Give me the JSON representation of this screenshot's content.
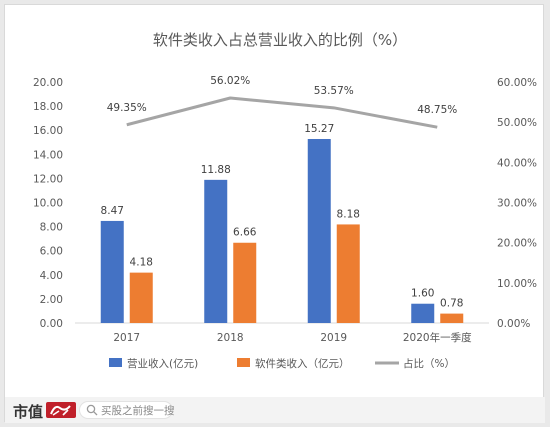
{
  "chart_data": {
    "type": "bar",
    "title": "软件类收入占总营业收入的比例（%）",
    "categories": [
      "2017",
      "2018",
      "2019",
      "2020年一季度"
    ],
    "series": [
      {
        "name": "营业收入(亿元)",
        "type": "bar",
        "axis": "left",
        "color": "#4472c4",
        "values": [
          8.47,
          11.88,
          15.27,
          1.6
        ],
        "labels": [
          "8.47",
          "11.88",
          "15.27",
          "1.60"
        ]
      },
      {
        "name": "软件类收入（亿元）",
        "type": "bar",
        "axis": "left",
        "color": "#ed7d31",
        "values": [
          4.18,
          6.66,
          8.18,
          0.78
        ],
        "labels": [
          "4.18",
          "6.66",
          "8.18",
          "0.78"
        ]
      },
      {
        "name": "占比（%）",
        "type": "line",
        "axis": "right",
        "color": "#a5a5a5",
        "values": [
          49.35,
          56.02,
          53.57,
          48.75
        ],
        "labels": [
          "49.35%",
          "56.02%",
          "53.57%",
          "48.75%"
        ]
      }
    ],
    "y_left": {
      "range": [
        0,
        20
      ],
      "ticks": [
        "0.00",
        "2.00",
        "4.00",
        "6.00",
        "8.00",
        "10.00",
        "12.00",
        "14.00",
        "16.00",
        "18.00",
        "20.00"
      ]
    },
    "y_right": {
      "range": [
        0,
        60
      ],
      "ticks": [
        "0.00%",
        "10.00%",
        "20.00%",
        "30.00%",
        "40.00%",
        "50.00%",
        "60.00%"
      ]
    },
    "grid": false,
    "legend_position": "bottom"
  },
  "footer": {
    "brand": "市值",
    "brand_logo": "风云 brush logo",
    "search_icon": "search-icon",
    "search_placeholder": "买股之前搜一搜"
  }
}
